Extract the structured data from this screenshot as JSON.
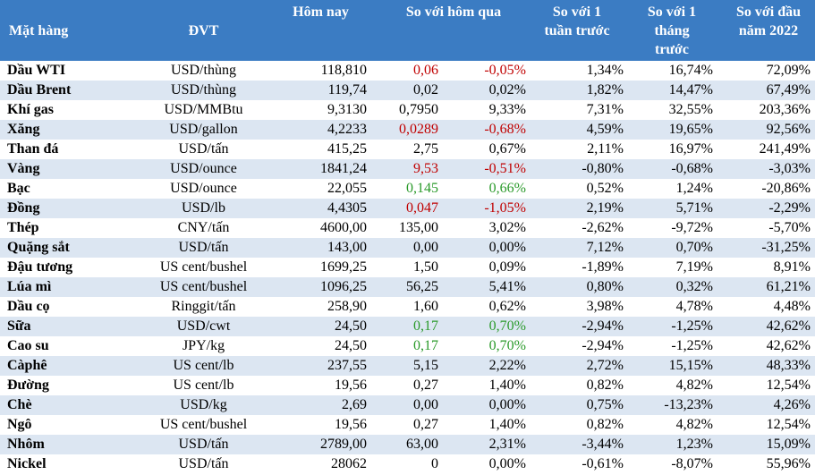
{
  "table": {
    "header": [
      "Mặt hàng",
      "ĐVT",
      "Hôm nay",
      "So với hôm qua",
      "So với 1 tuần trước",
      "So với 1 tháng trước",
      "So với đầu năm 2022"
    ],
    "header_color": "#3b7cc3",
    "stripe_color": "#dce6f2",
    "rows": [
      {
        "cells": [
          "Dầu WTI",
          "USD/thùng",
          "118,810",
          "0,06",
          "-0,05%",
          "1,34%",
          "16,74%",
          "72,09%"
        ],
        "change_color": "#c00000"
      },
      {
        "cells": [
          "Dầu Brent",
          "USD/thùng",
          "119,74",
          "0,02",
          "0,02%",
          "1,82%",
          "14,47%",
          "67,49%"
        ]
      },
      {
        "cells": [
          "Khí gas",
          "USD/MMBtu",
          "9,3130",
          "0,7950",
          "9,33%",
          "7,31%",
          "32,55%",
          "203,36%"
        ]
      },
      {
        "cells": [
          "Xăng",
          "USD/gallon",
          "4,2233",
          "0,0289",
          "-0,68%",
          "4,59%",
          "19,65%",
          "92,56%"
        ],
        "change_color": "#c00000"
      },
      {
        "cells": [
          "Than đá",
          "USD/tấn",
          "415,25",
          "2,75",
          "0,67%",
          "2,11%",
          "16,97%",
          "241,49%"
        ]
      },
      {
        "cells": [
          "Vàng",
          "USD/ounce",
          "1841,24",
          "9,53",
          "-0,51%",
          "-0,80%",
          "-0,68%",
          "-3,03%"
        ],
        "change_color": "#c00000"
      },
      {
        "cells": [
          "Bạc",
          "USD/ounce",
          "22,055",
          "0,145",
          "0,66%",
          "0,52%",
          "1,24%",
          "-20,86%"
        ],
        "change_color": "#2a9a2a"
      },
      {
        "cells": [
          "Đồng",
          "USD/lb",
          "4,4305",
          "0,047",
          "-1,05%",
          "2,19%",
          "5,71%",
          "-2,29%"
        ],
        "change_color": "#c00000"
      },
      {
        "cells": [
          "Thép",
          "CNY/tấn",
          "4600,00",
          "135,00",
          "3,02%",
          "-2,62%",
          "-9,72%",
          "-5,70%"
        ]
      },
      {
        "cells": [
          "Quặng sắt",
          "USD/tấn",
          "143,00",
          "0,00",
          "0,00%",
          "7,12%",
          "0,70%",
          "-31,25%"
        ]
      },
      {
        "cells": [
          "Đậu tương",
          "US cent/bushel",
          "1699,25",
          "1,50",
          "0,09%",
          "-1,89%",
          "7,19%",
          "8,91%"
        ]
      },
      {
        "cells": [
          "Lúa mì",
          "US cent/bushel",
          "1096,25",
          "56,25",
          "5,41%",
          "0,80%",
          "0,32%",
          "61,21%"
        ]
      },
      {
        "cells": [
          "Dầu cọ",
          "Ringgit/tấn",
          "258,90",
          "1,60",
          "0,62%",
          "3,98%",
          "4,78%",
          "4,48%"
        ]
      },
      {
        "cells": [
          "Sữa",
          "USD/cwt",
          "24,50",
          "0,17",
          "0,70%",
          "-2,94%",
          "-1,25%",
          "42,62%"
        ],
        "change_color": "#2a9a2a"
      },
      {
        "cells": [
          "Cao su",
          "JPY/kg",
          "24,50",
          "0,17",
          "0,70%",
          "-2,94%",
          "-1,25%",
          "42,62%"
        ],
        "change_color": "#2a9a2a"
      },
      {
        "cells": [
          "Càphê",
          "US cent/lb",
          "237,55",
          "5,15",
          "2,22%",
          "2,72%",
          "15,15%",
          "48,33%"
        ]
      },
      {
        "cells": [
          "Đường",
          "US cent/lb",
          "19,56",
          "0,27",
          "1,40%",
          "0,82%",
          "4,82%",
          "12,54%"
        ]
      },
      {
        "cells": [
          "Chè",
          "USD/kg",
          "2,69",
          "0,00",
          "0,00%",
          "0,75%",
          "-13,23%",
          "4,26%"
        ]
      },
      {
        "cells": [
          "Ngô",
          "US cent/bushel",
          "19,56",
          "0,27",
          "1,40%",
          "0,82%",
          "4,82%",
          "12,54%"
        ]
      },
      {
        "cells": [
          "Nhôm",
          "USD/tấn",
          "2789,00",
          "63,00",
          "2,31%",
          "-3,44%",
          "1,23%",
          "15,09%"
        ]
      },
      {
        "cells": [
          "Nickel",
          "USD/tấn",
          "28062",
          "0",
          "0,00%",
          "-0,61%",
          "-8,07%",
          "55,96%"
        ]
      }
    ]
  }
}
